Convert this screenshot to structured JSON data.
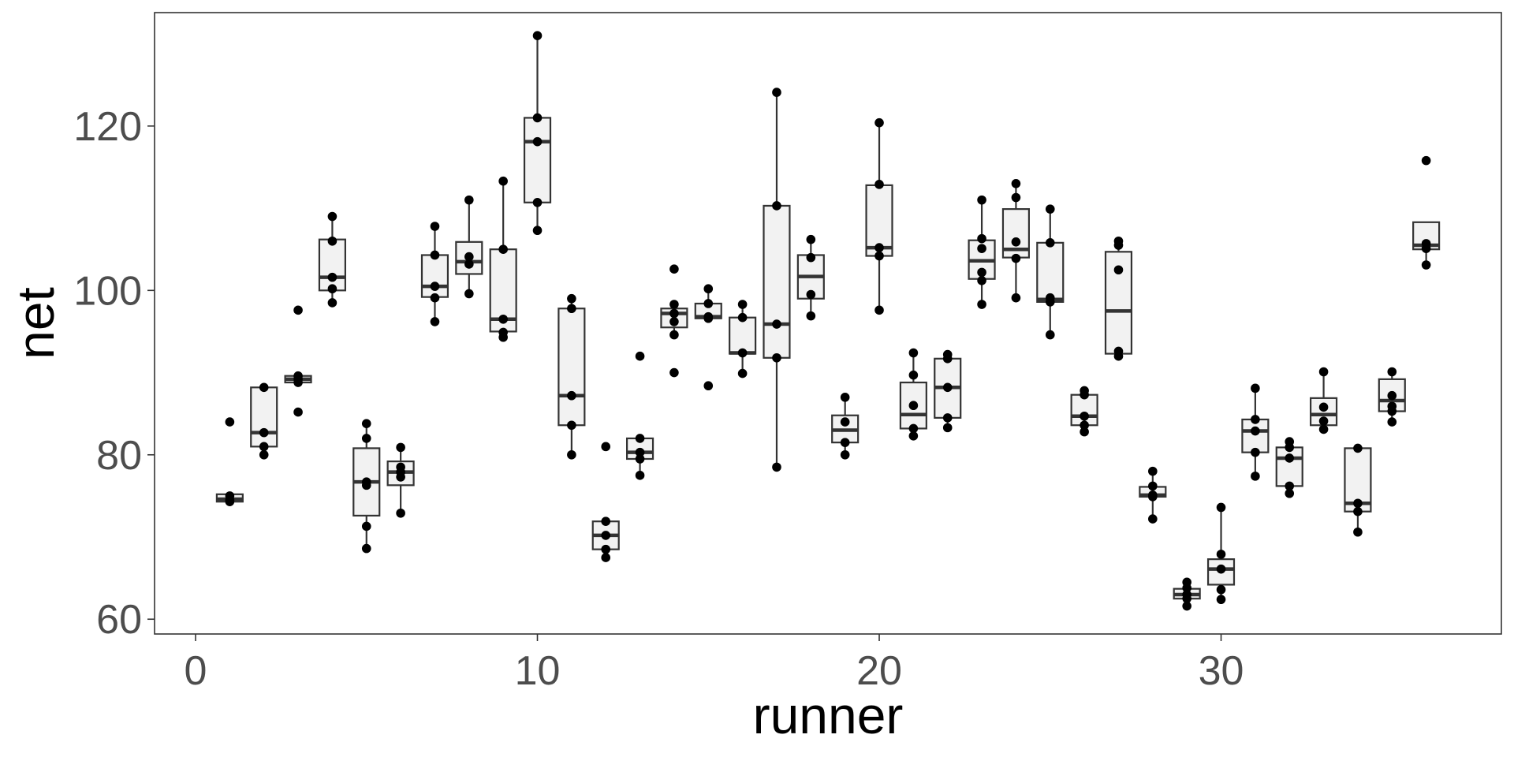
{
  "chart_data": {
    "type": "box",
    "xlabel": "runner",
    "ylabel": "net",
    "xlim": [
      -1.2,
      38.2
    ],
    "ylim": [
      58.2,
      133.8
    ],
    "x_ticks": [
      0,
      10,
      20,
      30
    ],
    "y_ticks": [
      60,
      80,
      100,
      120
    ],
    "grid": false,
    "colors": {
      "box_fill": "#f2f2f2",
      "box_stroke": "#333333",
      "point": "#000000",
      "panel_border": "#333333",
      "tick_label": "#4d4d4d"
    },
    "groups": [
      {
        "runner": 1,
        "q1": 74.3,
        "median": 74.6,
        "q3": 75.2,
        "min": 74.3,
        "max": 75.2,
        "points": [
          75.0,
          74.5,
          74.3,
          84.0
        ]
      },
      {
        "runner": 2,
        "q1": 81.0,
        "median": 82.7,
        "q3": 88.2,
        "min": 80.0,
        "max": 88.2,
        "points": [
          88.2,
          82.7,
          81.0,
          80.0
        ]
      },
      {
        "runner": 3,
        "q1": 88.8,
        "median": 89.2,
        "q3": 89.6,
        "min": 88.8,
        "max": 89.6,
        "points": [
          97.6,
          89.6,
          89.2,
          88.8,
          85.2
        ]
      },
      {
        "runner": 4,
        "q1": 100.0,
        "median": 101.6,
        "q3": 106.2,
        "min": 98.5,
        "max": 109.0,
        "points": [
          109.0,
          106.0,
          101.6,
          100.2,
          98.5
        ]
      },
      {
        "runner": 5,
        "q1": 72.6,
        "median": 76.7,
        "q3": 80.8,
        "min": 68.6,
        "max": 83.8,
        "points": [
          83.8,
          82.0,
          76.7,
          76.3,
          71.3,
          68.6
        ]
      },
      {
        "runner": 6,
        "q1": 76.3,
        "median": 77.9,
        "q3": 79.2,
        "min": 72.9,
        "max": 80.9,
        "points": [
          80.9,
          78.5,
          77.9,
          77.3,
          72.9
        ]
      },
      {
        "runner": 7,
        "q1": 99.2,
        "median": 100.5,
        "q3": 104.3,
        "min": 96.2,
        "max": 107.8,
        "points": [
          107.8,
          104.3,
          100.5,
          99.1,
          96.2
        ]
      },
      {
        "runner": 8,
        "q1": 102.0,
        "median": 103.5,
        "q3": 105.9,
        "min": 99.6,
        "max": 111.0,
        "points": [
          111.0,
          104.1,
          103.2,
          99.6
        ]
      },
      {
        "runner": 9,
        "q1": 95.0,
        "median": 96.5,
        "q3": 105.0,
        "min": 94.3,
        "max": 113.3,
        "points": [
          113.3,
          105.0,
          96.5,
          94.9,
          94.3
        ]
      },
      {
        "runner": 10,
        "q1": 110.7,
        "median": 118.1,
        "q3": 121.0,
        "min": 107.3,
        "max": 131.0,
        "points": [
          131.0,
          121.0,
          118.1,
          110.7,
          107.3
        ]
      },
      {
        "runner": 11,
        "q1": 83.6,
        "median": 87.2,
        "q3": 97.8,
        "min": 80.0,
        "max": 99.0,
        "points": [
          99.0,
          97.8,
          87.2,
          83.6,
          80.0
        ]
      },
      {
        "runner": 12,
        "q1": 68.5,
        "median": 70.2,
        "q3": 71.9,
        "min": 67.5,
        "max": 71.9,
        "points": [
          81.0,
          71.9,
          70.2,
          68.5,
          67.5
        ]
      },
      {
        "runner": 13,
        "q1": 79.5,
        "median": 80.3,
        "q3": 82.0,
        "min": 77.5,
        "max": 82.0,
        "points": [
          92.0,
          82.0,
          80.3,
          79.5,
          77.5
        ]
      },
      {
        "runner": 14,
        "q1": 95.5,
        "median": 97.2,
        "q3": 97.8,
        "min": 94.6,
        "max": 97.8,
        "points": [
          102.6,
          98.3,
          97.2,
          96.2,
          94.6,
          90.0
        ]
      },
      {
        "runner": 15,
        "q1": 96.6,
        "median": 96.8,
        "q3": 98.4,
        "min": 96.6,
        "max": 100.2,
        "points": [
          100.2,
          98.4,
          96.8,
          96.6,
          88.4
        ]
      },
      {
        "runner": 16,
        "q1": 92.3,
        "median": 92.4,
        "q3": 96.7,
        "min": 89.9,
        "max": 98.3,
        "points": [
          98.3,
          96.7,
          92.4,
          89.9
        ]
      },
      {
        "runner": 17,
        "q1": 91.8,
        "median": 95.9,
        "q3": 110.3,
        "min": 78.5,
        "max": 124.1,
        "points": [
          124.1,
          110.3,
          95.9,
          91.8,
          78.5
        ]
      },
      {
        "runner": 18,
        "q1": 99.0,
        "median": 101.7,
        "q3": 104.3,
        "min": 96.9,
        "max": 106.2,
        "points": [
          106.2,
          104.0,
          99.5,
          96.9
        ]
      },
      {
        "runner": 19,
        "q1": 81.5,
        "median": 83.0,
        "q3": 84.8,
        "min": 80.0,
        "max": 87.0,
        "points": [
          87.0,
          84.0,
          81.5,
          80.0
        ]
      },
      {
        "runner": 20,
        "q1": 104.2,
        "median": 105.2,
        "q3": 112.8,
        "min": 97.6,
        "max": 120.4,
        "points": [
          120.4,
          112.9,
          105.2,
          104.2,
          97.6
        ]
      },
      {
        "runner": 21,
        "q1": 83.2,
        "median": 84.9,
        "q3": 88.8,
        "min": 82.3,
        "max": 92.4,
        "points": [
          92.4,
          89.7,
          86.0,
          83.2,
          82.3
        ]
      },
      {
        "runner": 22,
        "q1": 84.5,
        "median": 88.2,
        "q3": 91.7,
        "min": 83.3,
        "max": 92.2,
        "points": [
          92.2,
          91.7,
          88.2,
          84.5,
          83.3
        ]
      },
      {
        "runner": 23,
        "q1": 101.4,
        "median": 103.6,
        "q3": 106.1,
        "min": 98.3,
        "max": 111.0,
        "points": [
          111.0,
          106.3,
          105.1,
          102.2,
          101.2,
          98.3
        ]
      },
      {
        "runner": 24,
        "q1": 104.0,
        "median": 105.0,
        "q3": 109.9,
        "min": 99.1,
        "max": 113.0,
        "points": [
          113.0,
          111.3,
          105.9,
          103.9,
          99.1
        ]
      },
      {
        "runner": 25,
        "q1": 98.6,
        "median": 98.9,
        "q3": 105.8,
        "min": 94.6,
        "max": 109.9,
        "points": [
          109.9,
          105.8,
          99.1,
          98.6,
          94.6
        ]
      },
      {
        "runner": 26,
        "q1": 83.6,
        "median": 84.7,
        "q3": 87.3,
        "min": 82.8,
        "max": 87.8,
        "points": [
          87.8,
          87.3,
          84.7,
          83.6,
          82.8
        ]
      },
      {
        "runner": 27,
        "q1": 92.3,
        "median": 97.5,
        "q3": 104.7,
        "min": 92.0,
        "max": 106.0,
        "points": [
          106.0,
          105.5,
          102.5,
          92.6,
          92.0
        ]
      },
      {
        "runner": 28,
        "q1": 74.9,
        "median": 75.1,
        "q3": 76.1,
        "min": 72.2,
        "max": 78.0,
        "points": [
          78.0,
          76.2,
          75.1,
          74.9,
          72.2
        ]
      },
      {
        "runner": 29,
        "q1": 62.5,
        "median": 63.0,
        "q3": 63.7,
        "min": 61.6,
        "max": 64.5,
        "points": [
          64.5,
          63.8,
          63.0,
          62.5,
          61.6
        ]
      },
      {
        "runner": 30,
        "q1": 64.2,
        "median": 66.1,
        "q3": 67.3,
        "min": 62.4,
        "max": 73.6,
        "points": [
          73.6,
          67.9,
          66.1,
          63.6,
          62.4
        ]
      },
      {
        "runner": 31,
        "q1": 80.3,
        "median": 82.9,
        "q3": 84.3,
        "min": 77.4,
        "max": 88.1,
        "points": [
          88.1,
          84.3,
          82.9,
          80.3,
          77.4
        ]
      },
      {
        "runner": 32,
        "q1": 76.2,
        "median": 79.6,
        "q3": 80.9,
        "min": 75.3,
        "max": 81.6,
        "points": [
          81.6,
          80.9,
          79.6,
          76.2,
          75.3
        ]
      },
      {
        "runner": 33,
        "q1": 83.6,
        "median": 84.9,
        "q3": 86.9,
        "min": 83.1,
        "max": 90.1,
        "points": [
          90.1,
          85.8,
          84.1,
          83.1
        ]
      },
      {
        "runner": 34,
        "q1": 73.1,
        "median": 74.1,
        "q3": 80.8,
        "min": 70.6,
        "max": 80.8,
        "points": [
          80.8,
          74.1,
          73.1,
          70.6
        ]
      },
      {
        "runner": 35,
        "q1": 85.3,
        "median": 86.6,
        "q3": 89.2,
        "min": 84.0,
        "max": 90.1,
        "points": [
          90.1,
          87.2,
          85.9,
          85.3,
          84.0
        ]
      },
      {
        "runner": 36,
        "q1": 105.0,
        "median": 105.5,
        "q3": 108.3,
        "min": 103.1,
        "max": 108.3,
        "points": [
          115.8,
          105.7,
          105.1,
          103.1
        ]
      }
    ]
  }
}
